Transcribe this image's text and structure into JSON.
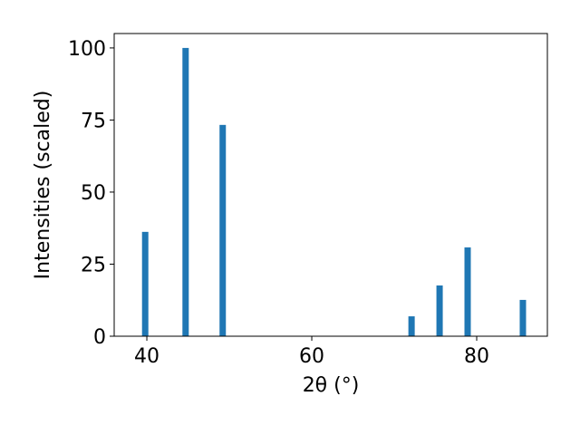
{
  "chart_data": {
    "type": "bar",
    "x_label": "2θ (°)",
    "y_label": "Intensities (scaled)",
    "x": [
      39.8,
      44.7,
      49.2,
      72.1,
      75.5,
      78.9,
      85.6
    ],
    "values": [
      36.2,
      100,
      73.3,
      6.9,
      17.6,
      30.8,
      12.6
    ],
    "color": "#1f77b4",
    "xlim": [
      36.04,
      88.57
    ],
    "xticks": [
      40,
      60,
      80
    ],
    "ylim": [
      0,
      105
    ],
    "yticks": [
      0,
      25,
      50,
      75,
      100
    ],
    "grid": false
  }
}
